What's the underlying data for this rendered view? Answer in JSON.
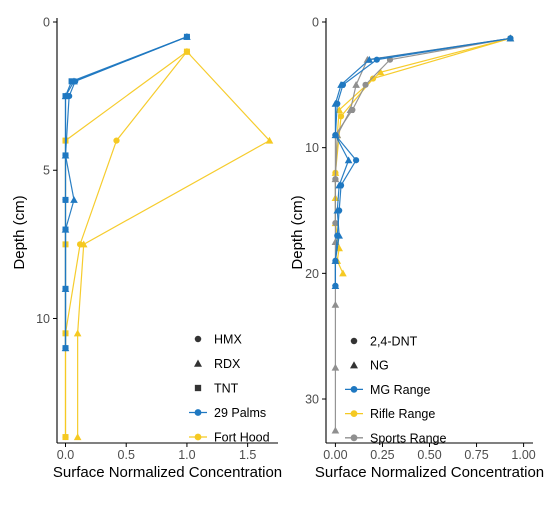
{
  "colors": {
    "blue": "#1f78c1",
    "yellow": "#f5c922",
    "grey": "#8f8f8f",
    "axis": "#000000",
    "legend_shape": "#333333"
  },
  "chart_data": [
    {
      "type": "line",
      "title": "",
      "xlabel": "Surface Normalized Concentration",
      "ylabel": "Depth (cm)",
      "xlim": [
        -0.07,
        1.75
      ],
      "ylim": [
        0,
        14.2
      ],
      "y_reversed": true,
      "x_ticks": [
        0,
        0.5,
        1.0,
        1.5
      ],
      "x_tick_labels": [
        "0.0",
        "0.5",
        "1.0",
        "1.5"
      ],
      "y_ticks": [
        0,
        5,
        10
      ],
      "y_tick_labels": [
        "0",
        "5",
        "10"
      ],
      "grid": false,
      "legend_position": "bottom-right",
      "legend_shapes": [
        {
          "label": "HMX",
          "shape": "circle"
        },
        {
          "label": "RDX",
          "shape": "triangle"
        },
        {
          "label": "TNT",
          "shape": "square"
        }
      ],
      "legend_colors": [
        {
          "label": "29 Palms",
          "color_key": "blue"
        },
        {
          "label": "Fort Hood",
          "color_key": "yellow"
        }
      ],
      "series": [
        {
          "color_key": "yellow",
          "shape": "circle",
          "x": [
            1.0,
            0.42,
            0.12,
            0.0,
            0.0
          ],
          "y": [
            1.0,
            4.0,
            7.5,
            10.5,
            14.0
          ]
        },
        {
          "color_key": "yellow",
          "shape": "triangle",
          "x": [
            1.0,
            1.68,
            0.15,
            0.1,
            0.1
          ],
          "y": [
            1.0,
            4.0,
            7.5,
            10.5,
            14.0
          ]
        },
        {
          "color_key": "yellow",
          "shape": "square",
          "x": [
            1.0,
            0.0,
            0.0,
            0.0,
            0.0
          ],
          "y": [
            1.0,
            4.0,
            7.5,
            10.5,
            14.0
          ]
        },
        {
          "color_key": "blue",
          "shape": "circle",
          "x": [
            1.0,
            0.08,
            0.03,
            0.0,
            0.0,
            0.0,
            0.0,
            0.0
          ],
          "y": [
            0.5,
            2.0,
            2.5,
            4.5,
            6.0,
            7.0,
            9.0,
            11.0
          ]
        },
        {
          "color_key": "blue",
          "shape": "triangle",
          "x": [
            1.0,
            0.07,
            0.0,
            0.0,
            0.07,
            0.0,
            0.0,
            0.0
          ],
          "y": [
            0.5,
            2.0,
            2.5,
            4.5,
            6.0,
            7.0,
            9.0,
            11.0
          ]
        },
        {
          "color_key": "blue",
          "shape": "square",
          "x": [
            1.0,
            0.05,
            0.0,
            0.0,
            0.0,
            0.0,
            0.0,
            0.0
          ],
          "y": [
            0.5,
            2.0,
            2.5,
            4.5,
            6.0,
            7.0,
            9.0,
            11.0
          ]
        }
      ]
    },
    {
      "type": "line",
      "title": "",
      "xlabel": "Surface Normalized Concentration",
      "ylabel": "Depth (cm)",
      "xlim": [
        -0.05,
        1.05
      ],
      "ylim": [
        0,
        33.5
      ],
      "y_reversed": true,
      "x_ticks": [
        0,
        0.25,
        0.5,
        0.75,
        1.0
      ],
      "x_tick_labels": [
        "0.00",
        "0.25",
        "0.50",
        "0.75",
        "1.00"
      ],
      "y_ticks": [
        0,
        10,
        20,
        30
      ],
      "y_tick_labels": [
        "0",
        "10",
        "20",
        "30"
      ],
      "grid": false,
      "legend_position": "bottom-right",
      "legend_shapes": [
        {
          "label": "2,4-DNT",
          "shape": "circle"
        },
        {
          "label": "NG",
          "shape": "triangle"
        }
      ],
      "legend_colors": [
        {
          "label": "MG Range",
          "color_key": "blue"
        },
        {
          "label": "Rifle Range",
          "color_key": "yellow"
        },
        {
          "label": "Sports Range",
          "color_key": "grey"
        }
      ],
      "series": [
        {
          "color_key": "yellow",
          "shape": "triangle",
          "x": [
            0.93,
            0.24,
            0.02,
            0.01,
            0.0,
            0.0,
            0.0,
            0.02,
            0.01,
            0.04
          ],
          "y": [
            1.3,
            4.0,
            7.0,
            9.0,
            12.0,
            14.0,
            16.0,
            18.0,
            19.0,
            20.0
          ]
        },
        {
          "color_key": "yellow",
          "shape": "circle",
          "x": [
            0.93,
            0.2,
            0.03,
            0.0
          ],
          "y": [
            1.3,
            4.5,
            7.5,
            12.0
          ]
        },
        {
          "color_key": "grey",
          "shape": "circle",
          "x": [
            0.93,
            0.29,
            0.16,
            0.09,
            0.0,
            0.0,
            0.0
          ],
          "y": [
            1.3,
            3.0,
            5.0,
            7.0,
            9.0,
            12.5,
            16.0
          ]
        },
        {
          "color_key": "grey",
          "shape": "triangle",
          "x": [
            0.93,
            0.17,
            0.11,
            0.08,
            0.01,
            0.0,
            0.0,
            0.0,
            0.0,
            0.0,
            0.0
          ],
          "y": [
            1.3,
            3.0,
            5.0,
            7.0,
            9.0,
            12.5,
            17.5,
            19.0,
            22.5,
            27.5,
            32.5
          ]
        },
        {
          "color_key": "blue",
          "shape": "circle",
          "x": [
            0.93,
            0.22,
            0.04,
            0.01,
            0.0,
            0.11,
            0.03,
            0.02,
            0.01,
            0.0,
            0.0,
            0.0
          ],
          "y": [
            1.3,
            3.0,
            5.0,
            6.5,
            9.0,
            11.0,
            13.0,
            15.0,
            17.0,
            19.0,
            21.0,
            21.0
          ]
        },
        {
          "color_key": "blue",
          "shape": "triangle",
          "x": [
            0.93,
            0.18,
            0.03,
            0.0,
            0.0,
            0.07,
            0.02,
            0.01,
            0.02,
            0.0,
            0.0
          ],
          "y": [
            1.3,
            3.0,
            5.0,
            6.5,
            9.0,
            11.0,
            13.0,
            15.0,
            17.0,
            19.0,
            21.0
          ]
        }
      ]
    }
  ]
}
